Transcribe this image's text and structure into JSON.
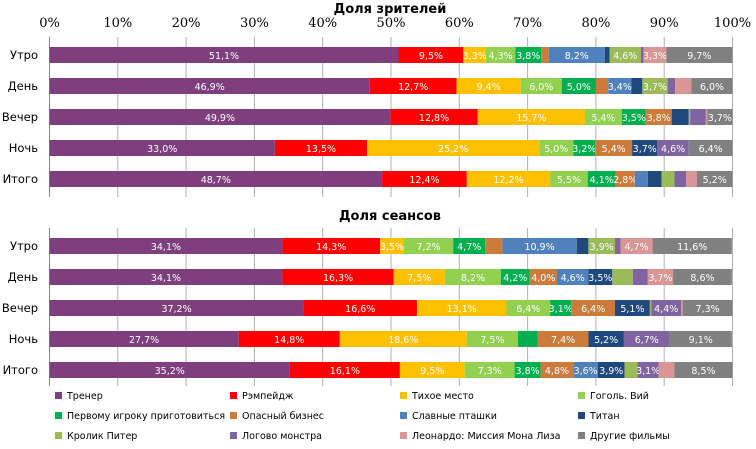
{
  "chart_data": [
    {
      "type": "bar",
      "stacked": true,
      "orientation": "horizontal",
      "title": "Доля зрителей",
      "xlim": [
        0,
        100
      ],
      "x_ticks": [
        "0%",
        "10%",
        "20%",
        "30%",
        "40%",
        "50%",
        "60%",
        "70%",
        "80%",
        "90%",
        "100%"
      ],
      "grid": true,
      "categories": [
        "Утро",
        "День",
        "Вечер",
        "Ночь",
        "Итого"
      ],
      "values": [
        [
          51.1,
          9.5,
          3.3,
          4.3,
          3.8,
          1.1,
          8.2,
          0.7,
          4.6,
          0.4,
          3.3,
          9.7
        ],
        [
          46.9,
          12.7,
          9.4,
          6.0,
          5.0,
          1.8,
          3.4,
          1.6,
          3.7,
          1.1,
          2.4,
          6.0
        ],
        [
          49.9,
          12.8,
          15.7,
          5.4,
          3.5,
          3.8,
          0,
          2.5,
          0.2,
          2.3,
          0.2,
          3.7
        ],
        [
          33.0,
          13.5,
          25.2,
          5.0,
          3.2,
          5.4,
          0,
          3.7,
          0,
          4.6,
          0,
          6.4
        ],
        [
          48.7,
          12.4,
          12.2,
          5.5,
          4.1,
          2.8,
          1.9,
          2.0,
          1.9,
          1.7,
          1.6,
          5.2
        ]
      ],
      "labels": [
        [
          "51,1%",
          "9,5%",
          "3,3%",
          "4,3%",
          "3,8%",
          "",
          "8,2%",
          "",
          "4,6%",
          "",
          "3,3%",
          "9,7%"
        ],
        [
          "46,9%",
          "12,7%",
          "9,4%",
          "6,0%",
          "5,0%",
          "",
          "3,4%",
          "",
          "3,7%",
          "",
          "",
          "6,0%"
        ],
        [
          "49,9%",
          "12,8%",
          "15,7%",
          "5,4%",
          "3,5%",
          "3,8%",
          "",
          "",
          "",
          "",
          "",
          "3,7%"
        ],
        [
          "33,0%",
          "13,5%",
          "25,2%",
          "5,0%",
          "3,2%",
          "5,4%",
          "",
          "3,7%",
          "",
          "4,6%",
          "",
          "6,4%"
        ],
        [
          "48,7%",
          "12,4%",
          "12,2%",
          "5,5%",
          "4,1%",
          "2,8%",
          "",
          "",
          "",
          "",
          "",
          "5,2%"
        ]
      ]
    },
    {
      "type": "bar",
      "stacked": true,
      "orientation": "horizontal",
      "title": "Доля сеансов",
      "xlim": [
        0,
        100
      ],
      "grid": true,
      "categories": [
        "Утро",
        "День",
        "Вечер",
        "Ночь",
        "Итого"
      ],
      "values": [
        [
          34.1,
          14.3,
          3.5,
          7.2,
          4.7,
          2.5,
          10.9,
          1.7,
          3.9,
          0.8,
          4.7,
          11.6
        ],
        [
          34.1,
          16.3,
          7.5,
          8.2,
          4.2,
          4.0,
          4.6,
          3.5,
          3.0,
          2.2,
          3.7,
          8.6
        ],
        [
          37.2,
          16.6,
          13.1,
          6.4,
          3.1,
          6.4,
          0,
          5.1,
          0.2,
          4.4,
          0.2,
          7.3
        ],
        [
          27.7,
          14.8,
          18.6,
          7.5,
          2.9,
          7.4,
          0,
          5.2,
          0,
          6.7,
          0,
          9.1
        ],
        [
          35.2,
          16.1,
          9.5,
          7.3,
          3.8,
          4.8,
          3.6,
          3.9,
          1.9,
          3.1,
          2.3,
          8.5
        ]
      ],
      "labels": [
        [
          "34,1%",
          "14,3%",
          "3,5%",
          "7,2%",
          "4,7%",
          "",
          "10,9%",
          "",
          "3,9%",
          "",
          "4,7%",
          "11,6%"
        ],
        [
          "34,1%",
          "16,3%",
          "7,5%",
          "8,2%",
          "4,2%",
          "4,0%",
          "4,6%",
          "3,5%",
          "",
          "",
          "3,7%",
          "8,6%"
        ],
        [
          "37,2%",
          "16,6%",
          "13,1%",
          "6,4%",
          "3,1%",
          "6,4%",
          "",
          "5,1%",
          "",
          "4,4%",
          "",
          "7,3%"
        ],
        [
          "27,7%",
          "14,8%",
          "18,6%",
          "7,5%",
          "",
          "7,4%",
          "",
          "5,2%",
          "",
          "6,7%",
          "",
          "9,1%"
        ],
        [
          "35,2%",
          "16,1%",
          "9,5%",
          "7,3%",
          "3,8%",
          "4,8%",
          "3,6%",
          "3,9%",
          "",
          "3,1%",
          "",
          "8,5%"
        ]
      ]
    }
  ],
  "legend": {
    "placement": "bottom",
    "items": [
      {
        "name": "Тренер",
        "color": "#7f3f7f"
      },
      {
        "name": "Рэмпейдж",
        "color": "#ff0000"
      },
      {
        "name": "Тихое место",
        "color": "#ffc000"
      },
      {
        "name": "Гоголь. Вий",
        "color": "#92d050"
      },
      {
        "name": "Первому игроку приготовиться",
        "color": "#00b050"
      },
      {
        "name": "Опасный бизнес",
        "color": "#cd7b3a"
      },
      {
        "name": "Славные пташки",
        "color": "#4f81bd"
      },
      {
        "name": "Титан",
        "color": "#1f497d"
      },
      {
        "name": "Кролик Питер",
        "color": "#9bbb59"
      },
      {
        "name": "Логово монстра",
        "color": "#8064a2"
      },
      {
        "name": "Леонардо: Миссия Мона Лиза",
        "color": "#da9694"
      },
      {
        "name": "Другие фильмы",
        "color": "#808080"
      }
    ]
  }
}
